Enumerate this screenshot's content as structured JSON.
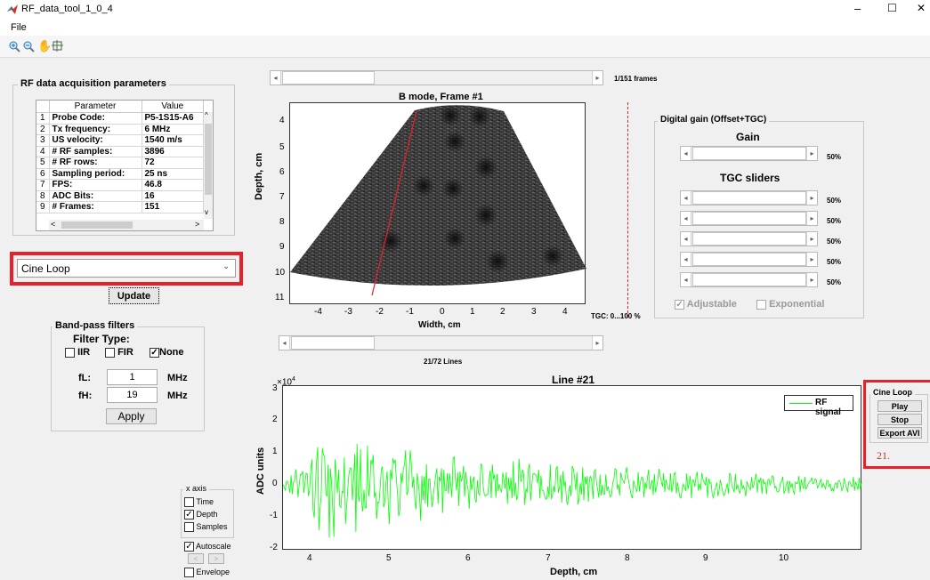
{
  "window": {
    "title": "RF_data_tool_1_0_4",
    "controls": [
      "–",
      "☐",
      "✕"
    ]
  },
  "menu": {
    "file": "File"
  },
  "toolbar": [
    "zoom-in",
    "zoom-out",
    "pan",
    "data-cursor"
  ],
  "acq": {
    "title": "RF data acquisition parameters",
    "headers": [
      "",
      "Parameter",
      "Value"
    ],
    "rows": [
      [
        "1",
        "Probe Code:",
        "P5-1S15-A6"
      ],
      [
        "2",
        "Tx frequency:",
        "6 MHz"
      ],
      [
        "3",
        "US velocity:",
        "1540 m/s"
      ],
      [
        "4",
        "# RF samples:",
        "3896"
      ],
      [
        "5",
        "# RF rows:",
        "72"
      ],
      [
        "6",
        "Sampling period:",
        "25 ns"
      ],
      [
        "7",
        "FPS:",
        "46.8"
      ],
      [
        "8",
        "ADC Bits:",
        "16"
      ],
      [
        "9",
        "# Frames:",
        "151"
      ]
    ]
  },
  "mode_select": {
    "value": "Cine Loop"
  },
  "update_button": "Update",
  "bandpass": {
    "title": "Band-pass filters",
    "filter_type": "Filter Type:",
    "options": [
      {
        "label": "IIR",
        "checked": false
      },
      {
        "label": "FIR",
        "checked": false
      },
      {
        "label": "None",
        "checked": true
      }
    ],
    "fl_label": "fL:",
    "fl_value": "1",
    "fl_unit": "MHz",
    "fh_label": "fH:",
    "fh_value": "19",
    "fh_unit": "MHz",
    "apply": "Apply"
  },
  "xaxis": {
    "title": "x axis",
    "time": "Time",
    "depth": "Depth",
    "samples": "Samples",
    "autoscale": "Autoscale",
    "envelope": "Envelope",
    "depth_checked": true,
    "autoscale_checked": true
  },
  "frame_slider": {
    "label": "1/151 frames",
    "position": 0.0
  },
  "bmode": {
    "title": "B mode, Frame #1",
    "xlabel": "Width, cm",
    "ylabel": "Depth, cm",
    "xticks": [
      "-4",
      "-3",
      "-2",
      "-1",
      "0",
      "1",
      "2",
      "3",
      "4"
    ],
    "yticks": [
      "4",
      "5",
      "6",
      "7",
      "8",
      "9",
      "10",
      "11"
    ],
    "tgc_label": "TGC: 0...100 %"
  },
  "line_slider": {
    "label": "21/72 Lines",
    "position": 0.29
  },
  "gain": {
    "title": "Digital gain (Offset+TGC)",
    "gain_label": "Gain",
    "gain_value": "50%",
    "tgc_label": "TGC sliders",
    "tgc_values": [
      "50%",
      "50%",
      "50%",
      "50%",
      "50%"
    ],
    "adjustable": "Adjustable",
    "exponential": "Exponential"
  },
  "rf_plot": {
    "title": "Line #21",
    "exponent": "×10",
    "exponent_power": "4",
    "xlabel": "Depth, cm",
    "ylabel": "ADC units",
    "xticks": [
      "4",
      "5",
      "6",
      "7",
      "8",
      "9",
      "10"
    ],
    "yticks": [
      "3",
      "2",
      "1",
      "0",
      "-1",
      "-2"
    ],
    "legend": "RF signal",
    "line_color": "#00ff00"
  },
  "cine": {
    "title": "Cine Loop",
    "play": "Play",
    "stop": "Stop",
    "export": "Export AVI",
    "label": "21."
  },
  "highlight_color": "#e8202a"
}
